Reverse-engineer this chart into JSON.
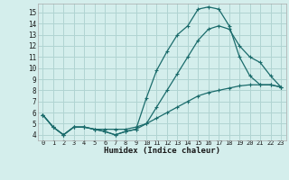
{
  "xlabel": "Humidex (Indice chaleur)",
  "bg_color": "#d4eeec",
  "grid_color": "#b0d4d2",
  "line_color": "#1a6b6b",
  "xlim": [
    -0.5,
    23.5
  ],
  "ylim": [
    3.5,
    15.8
  ],
  "xticks": [
    0,
    1,
    2,
    3,
    4,
    5,
    6,
    7,
    8,
    9,
    10,
    11,
    12,
    13,
    14,
    15,
    16,
    17,
    18,
    19,
    20,
    21,
    22,
    23
  ],
  "yticks": [
    4,
    5,
    6,
    7,
    8,
    9,
    10,
    11,
    12,
    13,
    14,
    15
  ],
  "line1_x": [
    0,
    1,
    2,
    3,
    4,
    5,
    6,
    7,
    8,
    9,
    10,
    11,
    12,
    13,
    14,
    15,
    16,
    17,
    18,
    19,
    20,
    21,
    22,
    23
  ],
  "line1_y": [
    5.8,
    4.7,
    4.0,
    4.7,
    4.7,
    4.5,
    4.3,
    4.0,
    4.3,
    4.5,
    7.3,
    9.8,
    11.5,
    13.0,
    13.8,
    15.3,
    15.5,
    15.3,
    13.8,
    11.0,
    9.3,
    8.5,
    8.5,
    8.3
  ],
  "line2_x": [
    0,
    1,
    2,
    3,
    4,
    5,
    6,
    7,
    8,
    9,
    10,
    11,
    12,
    13,
    14,
    15,
    16,
    17,
    18,
    19,
    20,
    21,
    22,
    23
  ],
  "line2_y": [
    5.8,
    4.7,
    4.0,
    4.7,
    4.7,
    4.5,
    4.3,
    4.0,
    4.3,
    4.5,
    5.0,
    6.5,
    8.0,
    9.5,
    11.0,
    12.5,
    13.5,
    13.8,
    13.5,
    12.0,
    11.0,
    10.5,
    9.3,
    8.3
  ],
  "line3_x": [
    0,
    1,
    2,
    3,
    4,
    5,
    6,
    7,
    8,
    9,
    10,
    11,
    12,
    13,
    14,
    15,
    16,
    17,
    18,
    19,
    20,
    21,
    22,
    23
  ],
  "line3_y": [
    5.8,
    4.7,
    4.0,
    4.7,
    4.7,
    4.5,
    4.5,
    4.5,
    4.5,
    4.7,
    5.0,
    5.5,
    6.0,
    6.5,
    7.0,
    7.5,
    7.8,
    8.0,
    8.2,
    8.4,
    8.5,
    8.5,
    8.5,
    8.3
  ]
}
